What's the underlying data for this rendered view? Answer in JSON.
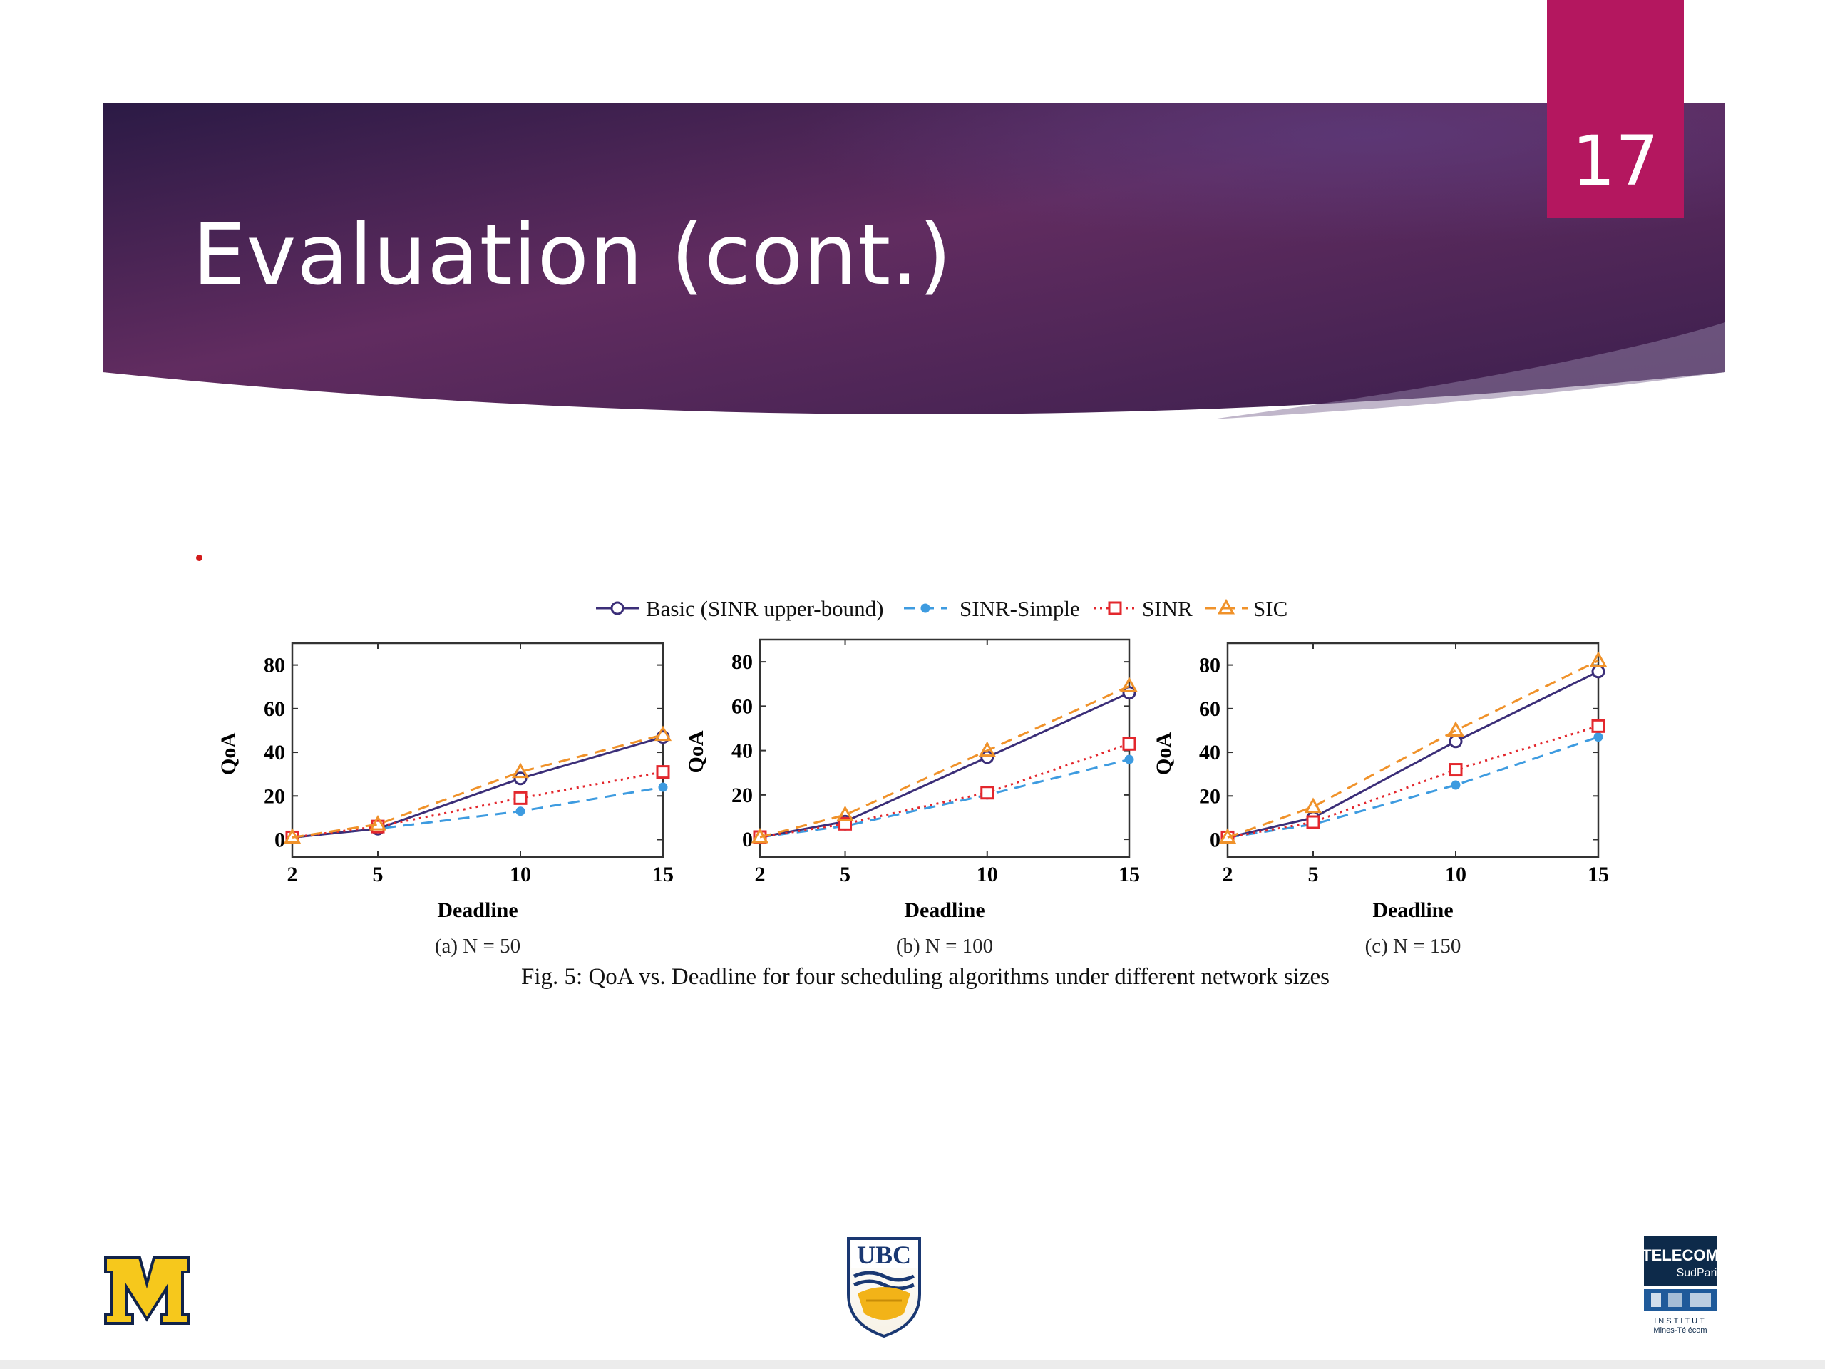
{
  "slide": {
    "title": "Evaluation (cont.)",
    "page_number": "17"
  },
  "colors": {
    "banner_dark": "#2b1a45",
    "banner_mid": "#5d2a5d",
    "page_badge": "#b4175f",
    "basic": "#3b2e78",
    "sinr_simple": "#3d9be0",
    "sinr": "#e3272d",
    "sic": "#f0922a"
  },
  "logos": {
    "left": "michigan-block-m-logo",
    "center": "UBC",
    "right_line1": "TELECOM",
    "right_line2": "SudParis",
    "right_line3": "INSTITUT",
    "right_line4": "Mines-Télécom"
  },
  "figure": {
    "caption": "Fig. 5: QoA vs. Deadline for four scheduling algorithms under different network sizes",
    "legend": [
      "Basic (SINR upper-bound)",
      "SINR-Simple",
      "SINR",
      "SIC"
    ]
  },
  "chart_data": [
    {
      "type": "line",
      "caption": "(a) N = 50",
      "xlabel": "Deadline",
      "ylabel": "QoA",
      "x": [
        2,
        5,
        10,
        15
      ],
      "xticks": [
        "2",
        "5",
        "10",
        "15"
      ],
      "yticks": [
        "0",
        "20",
        "40",
        "60",
        "80"
      ],
      "ylim": [
        -8,
        90
      ],
      "series": [
        {
          "name": "Basic (SINR upper-bound)",
          "values": [
            1,
            5,
            28,
            47
          ]
        },
        {
          "name": "SINR-Simple",
          "values": [
            1,
            5,
            13,
            24
          ]
        },
        {
          "name": "SINR",
          "values": [
            1,
            6,
            19,
            31
          ]
        },
        {
          "name": "SIC",
          "values": [
            1,
            7,
            31,
            48
          ]
        }
      ]
    },
    {
      "type": "line",
      "caption": "(b) N = 100",
      "xlabel": "Deadline",
      "ylabel": "QoA",
      "x": [
        2,
        5,
        10,
        15
      ],
      "xticks": [
        "2",
        "5",
        "10",
        "15"
      ],
      "yticks": [
        "0",
        "20",
        "40",
        "60",
        "80"
      ],
      "ylim": [
        -8,
        90
      ],
      "series": [
        {
          "name": "Basic (SINR upper-bound)",
          "values": [
            1,
            8,
            37,
            66
          ]
        },
        {
          "name": "SINR-Simple",
          "values": [
            1,
            6,
            20,
            36
          ]
        },
        {
          "name": "SINR",
          "values": [
            1,
            7,
            21,
            43
          ]
        },
        {
          "name": "SIC",
          "values": [
            1,
            11,
            40,
            69
          ]
        }
      ]
    },
    {
      "type": "line",
      "caption": "(c) N = 150",
      "xlabel": "Deadline",
      "ylabel": "QoA",
      "x": [
        2,
        5,
        10,
        15
      ],
      "xticks": [
        "2",
        "5",
        "10",
        "15"
      ],
      "yticks": [
        "0",
        "20",
        "40",
        "60",
        "80"
      ],
      "ylim": [
        -8,
        90
      ],
      "series": [
        {
          "name": "Basic (SINR upper-bound)",
          "values": [
            1,
            10,
            45,
            77
          ]
        },
        {
          "name": "SINR-Simple",
          "values": [
            1,
            7,
            25,
            47
          ]
        },
        {
          "name": "SINR",
          "values": [
            1,
            8,
            32,
            52
          ]
        },
        {
          "name": "SIC",
          "values": [
            1,
            15,
            50,
            82
          ]
        }
      ]
    }
  ]
}
